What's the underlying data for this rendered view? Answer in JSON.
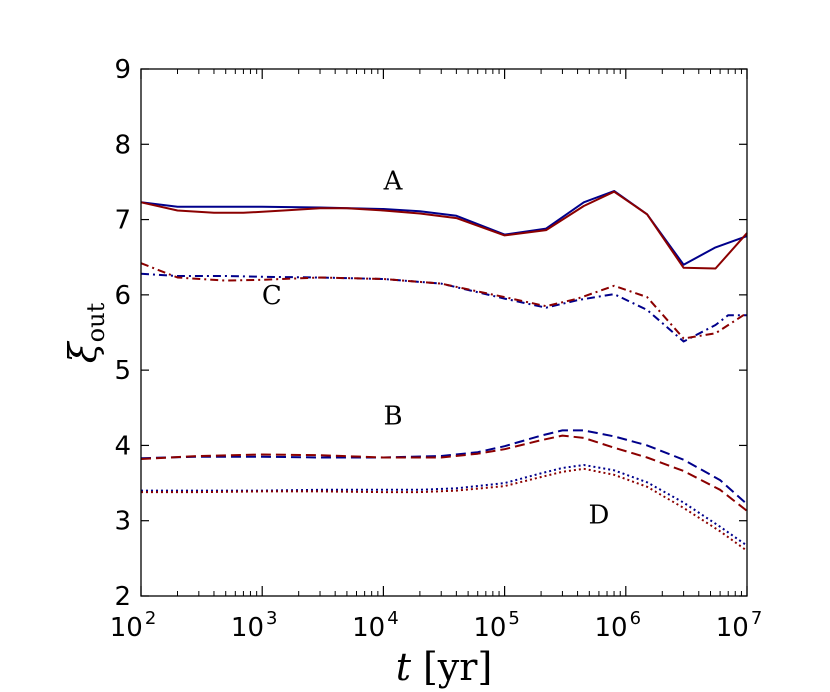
{
  "chart_data": {
    "type": "line",
    "xscale": "log",
    "xlim": [
      100,
      10000000
    ],
    "ylim": [
      2,
      9
    ],
    "x_ticks": [
      {
        "value": 100,
        "base": "10",
        "exp": "2"
      },
      {
        "value": 1000,
        "base": "10",
        "exp": "3"
      },
      {
        "value": 10000,
        "base": "10",
        "exp": "4"
      },
      {
        "value": 100000,
        "base": "10",
        "exp": "5"
      },
      {
        "value": 1000000,
        "base": "10",
        "exp": "6"
      },
      {
        "value": 10000000,
        "base": "10",
        "exp": "7"
      }
    ],
    "y_ticks": [
      {
        "value": 2,
        "label": "2"
      },
      {
        "value": 3,
        "label": "3"
      },
      {
        "value": 4,
        "label": "4"
      },
      {
        "value": 5,
        "label": "5"
      },
      {
        "value": 6,
        "label": "6"
      },
      {
        "value": 7,
        "label": "7"
      },
      {
        "value": 8,
        "label": "8"
      },
      {
        "value": 9,
        "label": "9"
      }
    ],
    "xlabel": {
      "var": "t",
      "unit": "[yr]"
    },
    "ylabel": {
      "var": "ξ",
      "sub": "out"
    },
    "grid": false,
    "colors": {
      "blue": "#00008b",
      "red": "#8b0000"
    },
    "series": [
      {
        "name": "A-blue",
        "color": "#00008b",
        "dash": "solid",
        "x": [
          100,
          200,
          400,
          1000,
          3000,
          10000,
          20000,
          40000,
          100000,
          220000,
          450000,
          800000,
          1500000,
          3000000,
          5500000,
          10000000
        ],
        "y": [
          7.23,
          7.17,
          7.17,
          7.17,
          7.16,
          7.14,
          7.11,
          7.05,
          6.8,
          6.88,
          7.23,
          7.38,
          7.07,
          6.4,
          6.63,
          6.78
        ]
      },
      {
        "name": "A-red",
        "color": "#8b0000",
        "dash": "solid",
        "x": [
          100,
          200,
          400,
          700,
          1500,
          3000,
          5000,
          10000,
          20000,
          40000,
          100000,
          220000,
          450000,
          800000,
          1500000,
          3000000,
          5500000,
          10000000
        ],
        "y": [
          7.23,
          7.12,
          7.09,
          7.09,
          7.12,
          7.15,
          7.15,
          7.12,
          7.08,
          7.02,
          6.79,
          6.86,
          7.18,
          7.37,
          7.07,
          6.36,
          6.35,
          6.82
        ]
      },
      {
        "name": "C-blue",
        "color": "#00008b",
        "dash": "dashdot",
        "x": [
          100,
          200,
          500,
          1000,
          3000,
          10000,
          30000,
          100000,
          220000,
          400000,
          800000,
          1500000,
          3000000,
          5500000,
          7000000,
          10000000
        ],
        "y": [
          6.28,
          6.25,
          6.25,
          6.24,
          6.23,
          6.21,
          6.15,
          5.95,
          5.83,
          5.93,
          6.01,
          5.8,
          5.38,
          5.6,
          5.73,
          5.73
        ]
      },
      {
        "name": "C-red",
        "color": "#8b0000",
        "dash": "dashdot",
        "x": [
          100,
          200,
          500,
          1000,
          3000,
          10000,
          30000,
          100000,
          220000,
          400000,
          800000,
          1500000,
          3000000,
          5500000,
          10000000
        ],
        "y": [
          6.42,
          6.23,
          6.19,
          6.2,
          6.23,
          6.21,
          6.15,
          5.97,
          5.85,
          5.95,
          6.12,
          5.97,
          5.42,
          5.49,
          5.76
        ]
      },
      {
        "name": "B-blue",
        "color": "#00008b",
        "dash": "dashed",
        "x": [
          100,
          300,
          1000,
          3000,
          10000,
          30000,
          60000,
          100000,
          200000,
          300000,
          450000,
          800000,
          1500000,
          3000000,
          6000000,
          10000000
        ],
        "y": [
          3.83,
          3.85,
          3.85,
          3.84,
          3.84,
          3.86,
          3.91,
          3.99,
          4.13,
          4.2,
          4.2,
          4.12,
          4.0,
          3.81,
          3.54,
          3.22
        ]
      },
      {
        "name": "B-red",
        "color": "#8b0000",
        "dash": "dashed",
        "x": [
          100,
          300,
          1000,
          3000,
          10000,
          30000,
          60000,
          100000,
          200000,
          300000,
          450000,
          800000,
          1500000,
          3000000,
          6000000,
          10000000
        ],
        "y": [
          3.82,
          3.86,
          3.88,
          3.87,
          3.84,
          3.84,
          3.89,
          3.95,
          4.07,
          4.13,
          4.1,
          3.97,
          3.84,
          3.66,
          3.41,
          3.13
        ]
      },
      {
        "name": "D-blue",
        "color": "#00008b",
        "dash": "dotted",
        "x": [
          100,
          300,
          1000,
          3000,
          10000,
          20000,
          40000,
          100000,
          200000,
          300000,
          450000,
          800000,
          1500000,
          3000000,
          6000000,
          10000000
        ],
        "y": [
          3.4,
          3.4,
          3.4,
          3.41,
          3.41,
          3.41,
          3.43,
          3.5,
          3.63,
          3.7,
          3.74,
          3.67,
          3.51,
          3.24,
          2.92,
          2.67
        ]
      },
      {
        "name": "D-red",
        "color": "#8b0000",
        "dash": "dotted",
        "x": [
          100,
          300,
          1000,
          3000,
          10000,
          20000,
          40000,
          100000,
          200000,
          300000,
          450000,
          800000,
          1500000,
          3000000,
          6000000,
          10000000
        ],
        "y": [
          3.38,
          3.38,
          3.39,
          3.39,
          3.38,
          3.38,
          3.4,
          3.46,
          3.58,
          3.65,
          3.69,
          3.61,
          3.45,
          3.17,
          2.86,
          2.6
        ]
      }
    ],
    "annotations": [
      {
        "label": "A",
        "x": 12000,
        "y": 7.4
      },
      {
        "label": "C",
        "x": 1200,
        "y": 5.88
      },
      {
        "label": "B",
        "x": 12000,
        "y": 4.28
      },
      {
        "label": "D",
        "x": 600000,
        "y": 2.96
      }
    ]
  }
}
